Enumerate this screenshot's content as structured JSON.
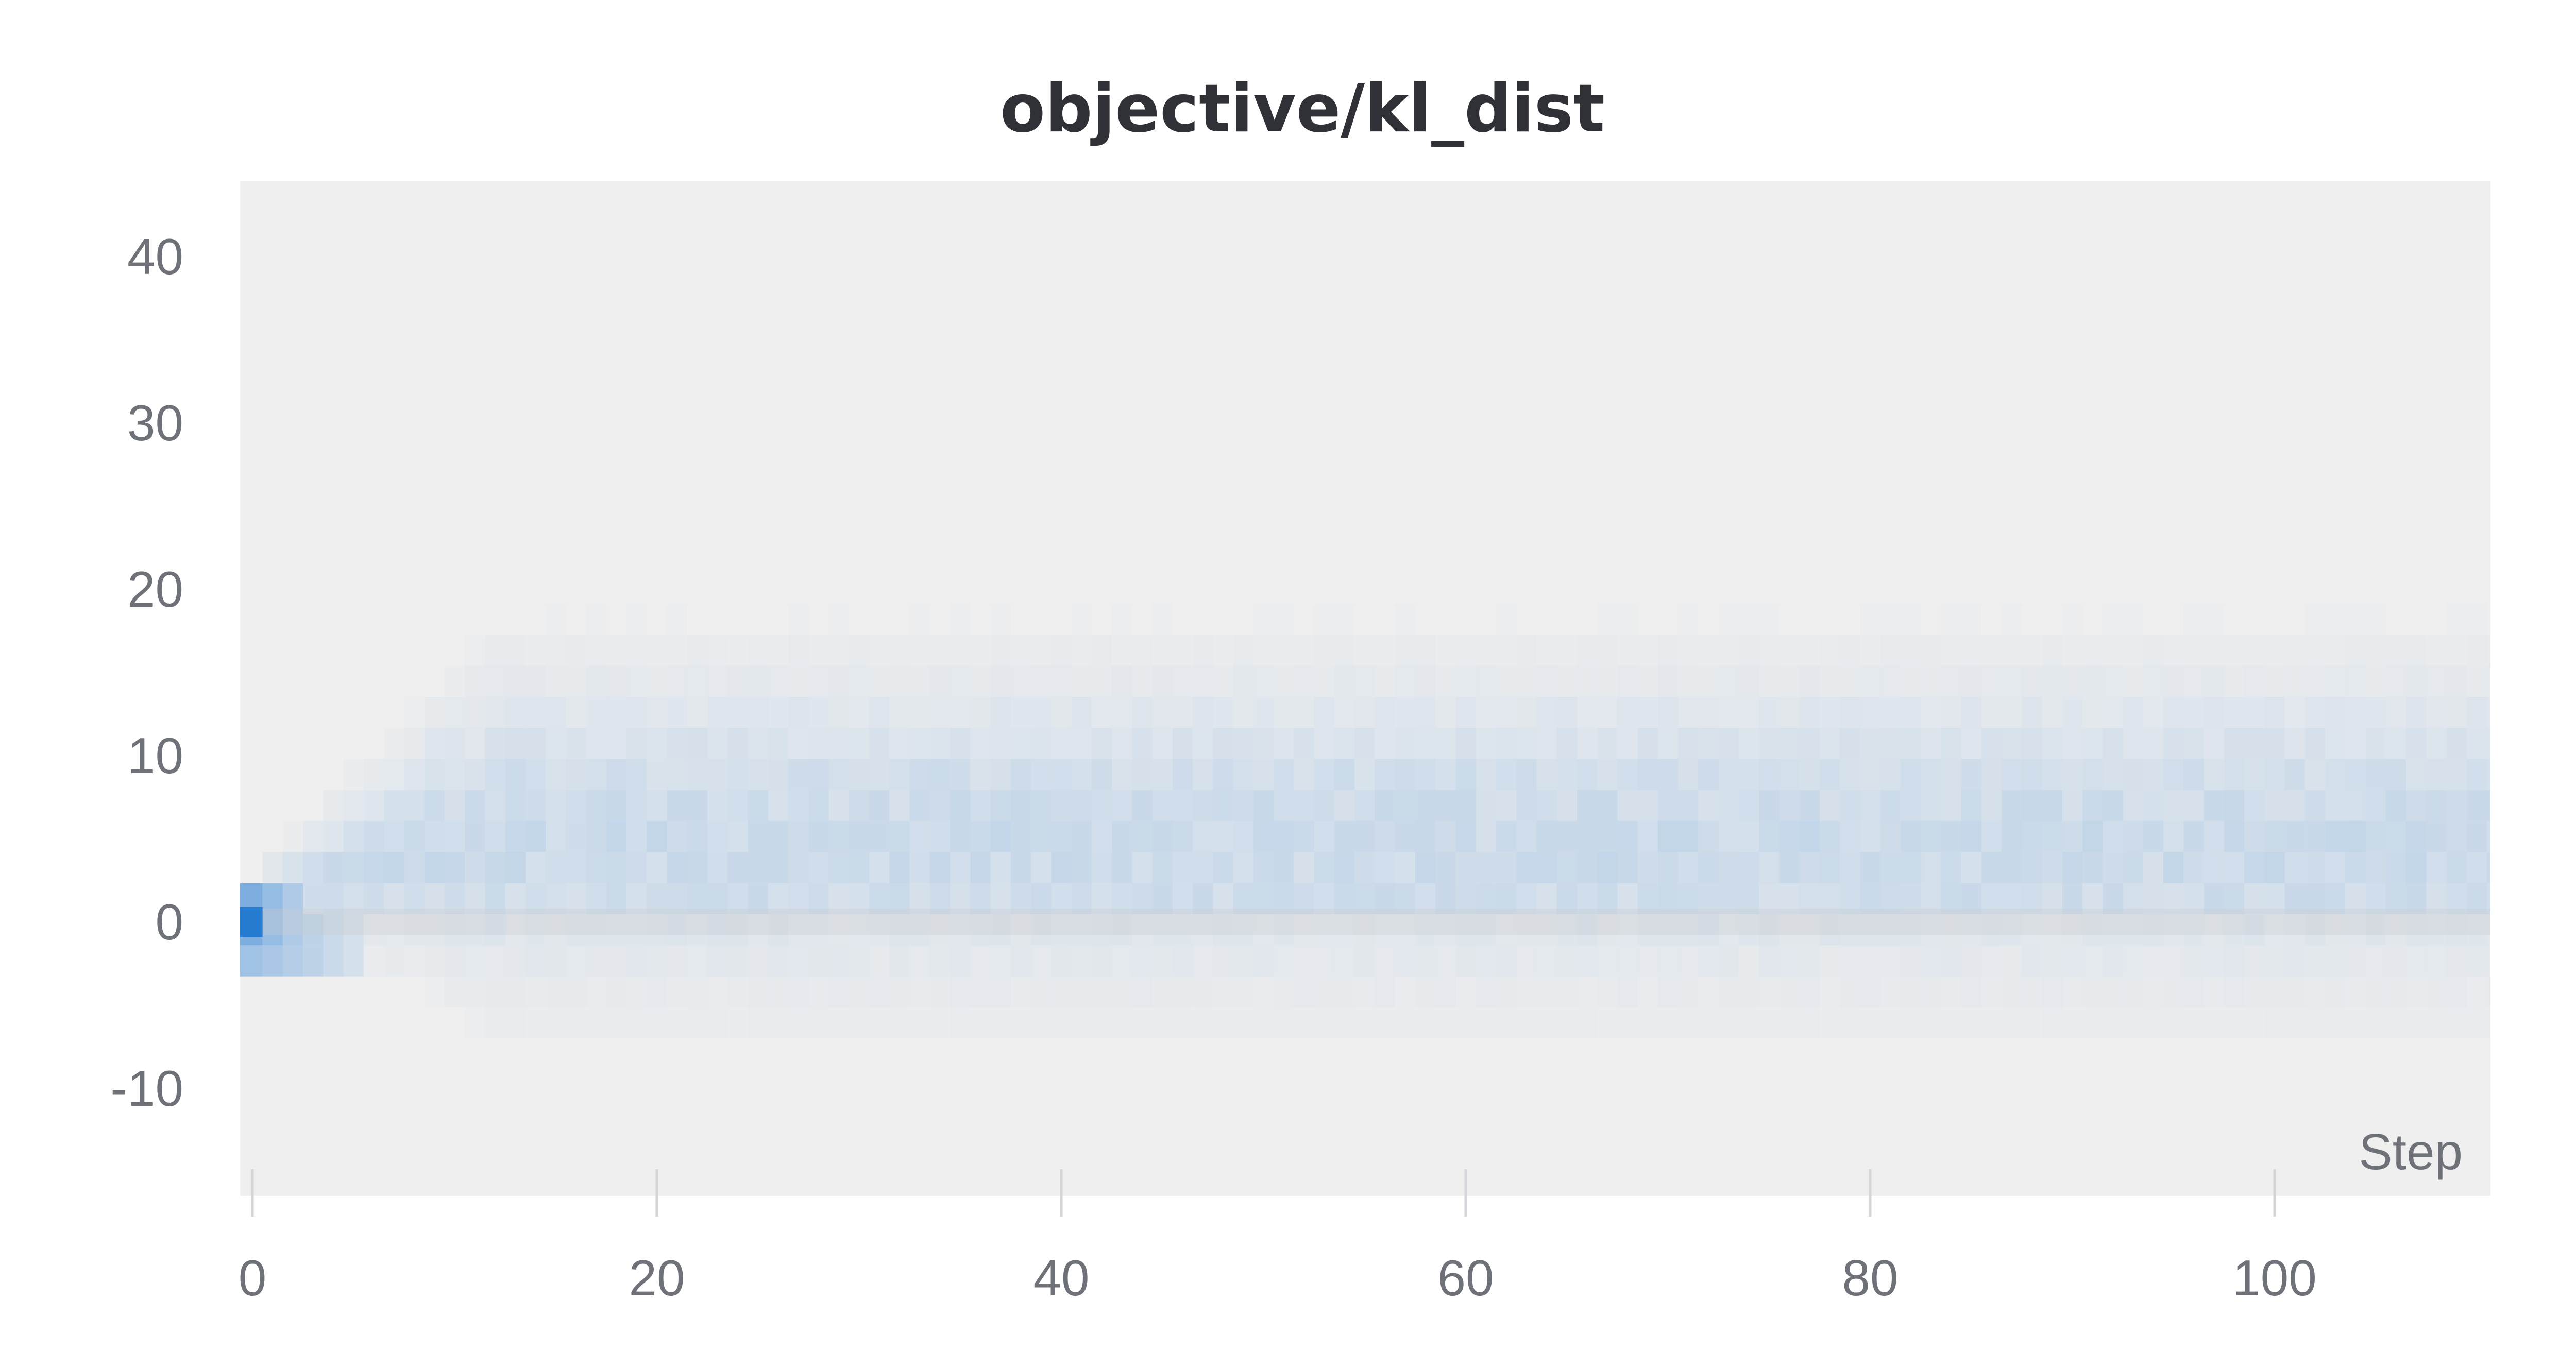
{
  "chart_data": {
    "type": "heatmap",
    "title": "objective/kl_dist",
    "xlabel": "Step",
    "ylabel": "",
    "x_ticks": [
      0,
      20,
      40,
      60,
      80,
      100
    ],
    "y_ticks": [
      40,
      30,
      20,
      10,
      0,
      -10
    ],
    "xlim": [
      -0.5,
      113.5
    ],
    "ylim": [
      -16,
      45
    ],
    "grid": false,
    "colors": {
      "plot_background": "#efefef",
      "cell": "#1f78d1",
      "zero_row": "#c8cad0",
      "title": "#2f3136",
      "axis_text": "#6f7178"
    },
    "bins": {
      "y_edges": [
        -7,
        -5.13,
        -3.27,
        -1.4,
        0.47,
        2.33,
        4.2,
        6.07,
        7.93,
        9.8,
        11.67,
        13.53,
        15.4,
        17.27,
        19.13,
        21,
        22.87,
        24.73,
        26.6,
        28.47,
        30.33,
        32.2,
        34.07,
        35.93,
        37.8
      ],
      "density_profile_note": "Distribution widens from a narrow peak at 0 (step 0) to roughly -4..15 by step ~10 and stays broad through step 113; high-value bin near 0 at the first steps.",
      "step_start": 0,
      "step_end": 113,
      "step_bin_width": 1
    }
  }
}
